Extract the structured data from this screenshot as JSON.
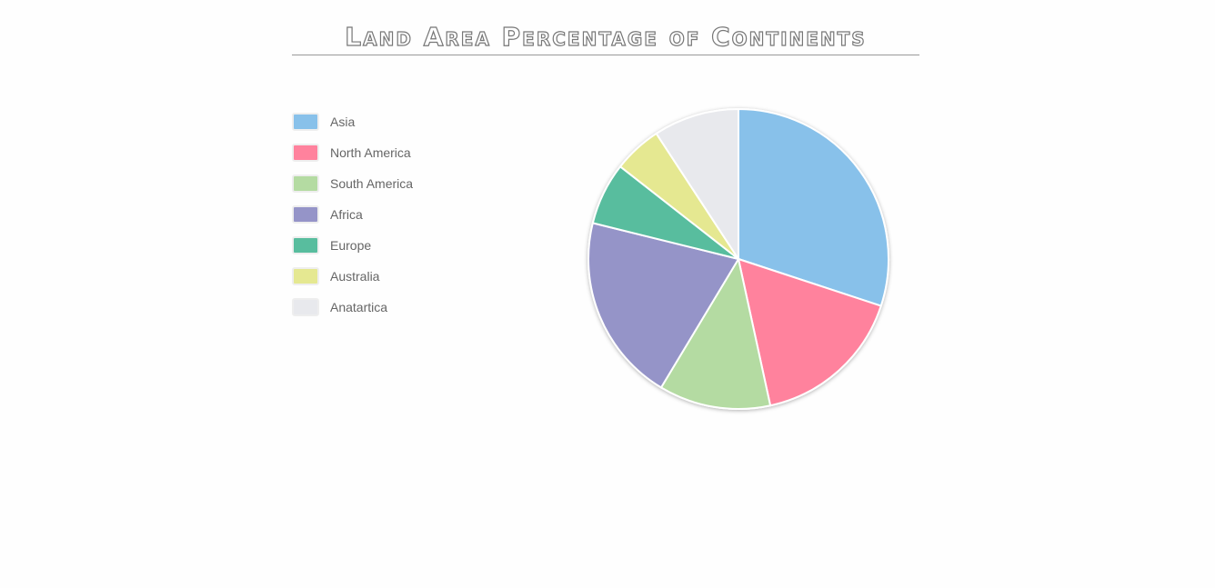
{
  "chart_data": {
    "type": "pie",
    "title": "Land Area Percentage of Continents",
    "legend_position": "left",
    "categories": [
      "Asia",
      "North America",
      "South America",
      "Africa",
      "Europe",
      "Australia",
      "Anatartica"
    ],
    "values": [
      30,
      16.5,
      12,
      20.2,
      6.7,
      5.2,
      9.2
    ],
    "colors": [
      "#88c1ea",
      "#ff829d",
      "#b4dba2",
      "#9594c8",
      "#58bd9e",
      "#e5e891",
      "#e8e9ed"
    ]
  }
}
